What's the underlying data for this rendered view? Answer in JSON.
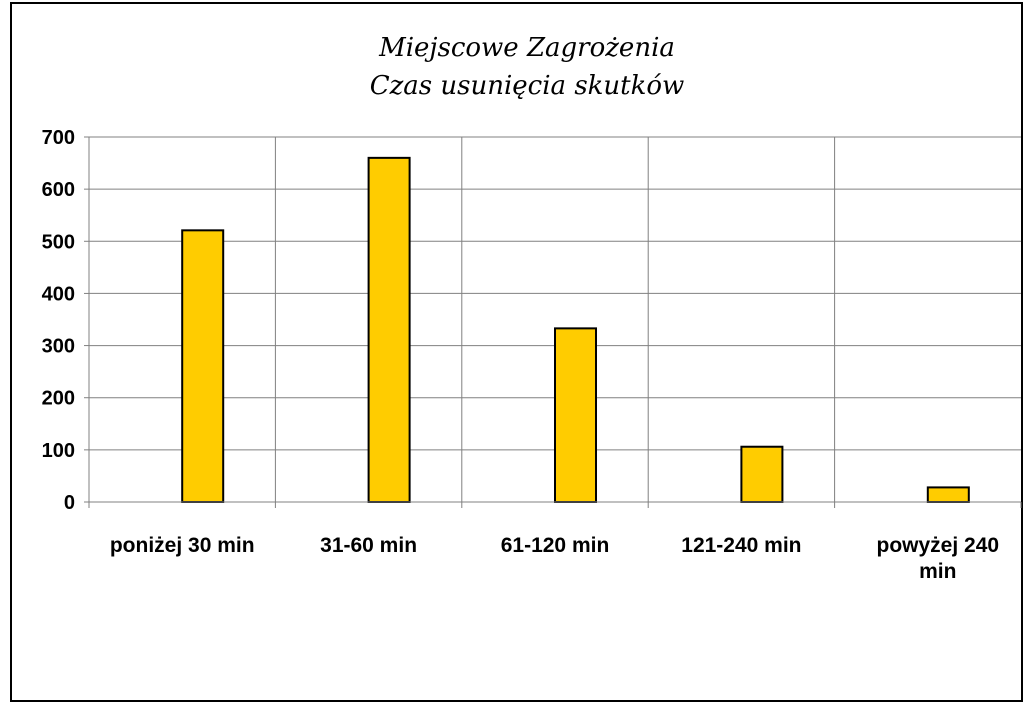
{
  "chart_data": {
    "type": "bar",
    "title": [
      "Miejscowe Zagrożenia",
      "Czas usunięcia skutków"
    ],
    "categories": [
      [
        "poniżej 30 min"
      ],
      [
        "31-60 min"
      ],
      [
        "61-120 min"
      ],
      [
        "121-240 min"
      ],
      [
        "powyżej 240",
        "min"
      ]
    ],
    "values": [
      521,
      660,
      333,
      106,
      28
    ],
    "yticks": [
      "0",
      "100",
      "200",
      "300",
      "400",
      "500",
      "600",
      "700"
    ],
    "ylim": [
      0,
      700
    ],
    "xlabel": "",
    "ylabel": "",
    "grid": true,
    "legend": "none",
    "bar_color": "#FFCC00",
    "bar_edge_color": "#000000"
  }
}
